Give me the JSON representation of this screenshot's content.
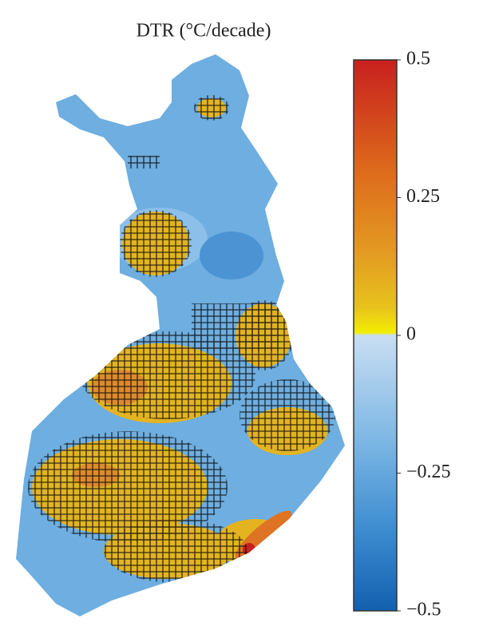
{
  "title": "DTR (°C/decade)",
  "colorbar": {
    "lim": [
      -0.5,
      0.5
    ],
    "ticks": [
      {
        "value": 0.5,
        "label": "0.5"
      },
      {
        "value": 0.25,
        "label": "0.25"
      },
      0,
      {
        "value": -0.25,
        "label": "−0.25"
      },
      {
        "value": -0.5,
        "label": "−0.5"
      }
    ]
  }
}
